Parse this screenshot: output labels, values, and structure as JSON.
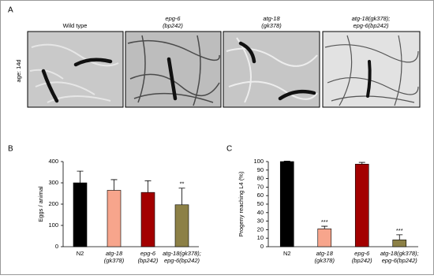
{
  "panel_a": {
    "label": "A",
    "row_label": "age: 14d",
    "columns": [
      [
        "Wild type"
      ],
      [
        "epg-6",
        "(bp242)"
      ],
      [
        "atg-18",
        "(gk378)"
      ],
      [
        "atg-18(gk378);",
        "epg-6(bp242)"
      ]
    ]
  },
  "chart_data": [
    {
      "type": "bar",
      "panel": "B",
      "ylabel": "Eggs / animal",
      "categories": [
        [
          "N2"
        ],
        [
          "atg-18",
          "(gk378)"
        ],
        [
          "epg-6",
          "(bp242)"
        ],
        [
          "atg-18(gk378);",
          "epg-6(bp242)"
        ]
      ],
      "values": [
        300,
        265,
        255,
        197
      ],
      "errors": [
        55,
        50,
        55,
        78
      ],
      "colors": [
        "#000000",
        "#f7a58c",
        "#a30000",
        "#8c8046"
      ],
      "annotations": [
        null,
        null,
        null,
        "**"
      ],
      "ylim": [
        0,
        400
      ],
      "yticks": [
        0,
        100,
        200,
        300,
        400
      ]
    },
    {
      "type": "bar",
      "panel": "C",
      "ylabel": "Progeny reaching L4 (%)",
      "categories": [
        [
          "N2"
        ],
        [
          "atg-18",
          "(gk378)"
        ],
        [
          "epg-6",
          "(bp242)"
        ],
        [
          "atg-18(gk378);",
          "epg-6(bp242)"
        ]
      ],
      "values": [
        100,
        21,
        97,
        8
      ],
      "errors": [
        0.5,
        3,
        2,
        6
      ],
      "colors": [
        "#000000",
        "#f7a58c",
        "#a30000",
        "#8c8046"
      ],
      "annotations": [
        null,
        "***",
        null,
        "***"
      ],
      "ylim": [
        0,
        100
      ],
      "yticks": [
        0,
        10,
        20,
        30,
        40,
        50,
        60,
        70,
        80,
        90,
        100
      ]
    }
  ]
}
